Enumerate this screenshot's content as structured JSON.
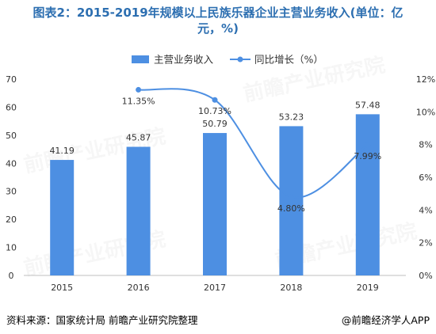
{
  "title_line1": "图表2：2015-2019年规模以上民族乐器企业主营业务收入(单位：亿",
  "title_line2": "元，%)",
  "source_left": "资料来源：国家统计局 前瞻产业研究院整理",
  "source_right": "@前瞻经济学人APP",
  "watermark": "前瞻产业研究院",
  "colors": {
    "bar": "#4d8fe2",
    "line": "#4d8fe2",
    "title": "#2d6fb1"
  },
  "chart_data": {
    "type": "bar",
    "categories": [
      "2015",
      "2016",
      "2017",
      "2018",
      "2019"
    ],
    "series": [
      {
        "name": "主营业务收入",
        "type": "bar",
        "axis": "left",
        "values": [
          41.19,
          45.87,
          50.79,
          53.23,
          57.48
        ],
        "labels": [
          "41.19",
          "45.87",
          "50.79",
          "53.23",
          "57.48"
        ]
      },
      {
        "name": "同比增长（%）",
        "type": "line",
        "axis": "right",
        "values": [
          null,
          11.35,
          10.73,
          4.8,
          7.99
        ],
        "labels": [
          "",
          "11.35%",
          "10.73%",
          "4.80%",
          "7.99%"
        ]
      }
    ],
    "y_left": {
      "range": [
        0,
        70
      ],
      "ticks": [
        "0",
        "10",
        "20",
        "30",
        "40",
        "50",
        "60",
        "70"
      ]
    },
    "y_right": {
      "range": [
        0,
        12
      ],
      "ticks": [
        "0%",
        "2%",
        "4%",
        "6%",
        "8%",
        "10%",
        "12%"
      ]
    },
    "legend_position": "top-center",
    "grid": false
  }
}
